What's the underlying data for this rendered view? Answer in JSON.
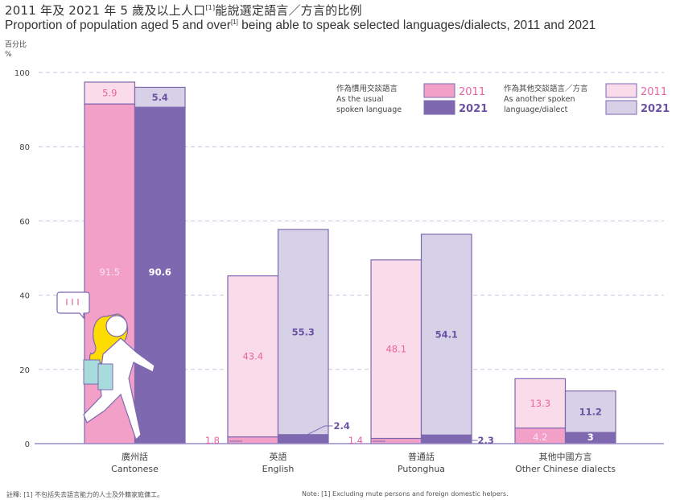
{
  "title_zh": "2011 年及 2021 年 5 歲及以上人口",
  "title_zh_sup": "[1]",
  "title_zh_tail": "能說選定語言／方言的比例",
  "title_en": "Proportion of population aged 5 and over",
  "title_en_sup": "[1]",
  "title_en_tail": " being able to speak selected languages/dialects, 2011 and 2021",
  "unit_zh": "百分比",
  "unit_en": "%",
  "legend": {
    "usual_zh": "作為慣用交談語言",
    "usual_en_1": "As the usual",
    "usual_en_2": "spoken language",
    "another_zh": "作為其他交談語言／方言",
    "another_en_1": "As another spoken",
    "another_en_2": "language/dialect",
    "year_2011": "2011",
    "year_2021": "2021"
  },
  "colors": {
    "usual_2011": "#f3a0c8",
    "usual_2021": "#7e68b0",
    "another_2011": "#fadbe9",
    "another_2021": "#d6d1e7",
    "outline": "#7e68b0",
    "label_2011": "#e8649f",
    "label_2021": "#6b52a3",
    "grid": "#c9c2e0"
  },
  "notes": {
    "zh": "註釋: [1] 不包括失去語言能力的人士及外籍家庭傭工。",
    "en": "Note:   [1] Excluding mute persons and foreign domestic helpers."
  },
  "chart_data": {
    "type": "bar",
    "stacked": true,
    "title": "Proportion of population aged 5 and over being able to speak selected languages/dialects, 2011 and 2021",
    "ylabel": "%",
    "ylim": [
      0,
      100
    ],
    "yticks": [
      0,
      20,
      40,
      60,
      80,
      100
    ],
    "grid": true,
    "legend_position": "top-right",
    "categories": [
      {
        "zh": "廣州話",
        "en": "Cantonese"
      },
      {
        "zh": "英語",
        "en": "English"
      },
      {
        "zh": "普通話",
        "en": "Putonghua"
      },
      {
        "zh": "其他中國方言",
        "en": "Other Chinese dialects"
      }
    ],
    "series": [
      {
        "name": "As the usual spoken language 2011",
        "year": "2011",
        "kind": "usual",
        "values": [
          91.5,
          1.8,
          1.4,
          4.2
        ]
      },
      {
        "name": "As another spoken language/dialect 2011",
        "year": "2011",
        "kind": "another",
        "values": [
          5.9,
          43.4,
          48.1,
          13.3
        ]
      },
      {
        "name": "As the usual spoken language 2021",
        "year": "2021",
        "kind": "usual",
        "values": [
          90.6,
          2.4,
          2.3,
          3.0
        ]
      },
      {
        "name": "As another spoken language/dialect 2021",
        "year": "2021",
        "kind": "another",
        "values": [
          5.4,
          55.3,
          54.1,
          11.2
        ]
      }
    ]
  }
}
